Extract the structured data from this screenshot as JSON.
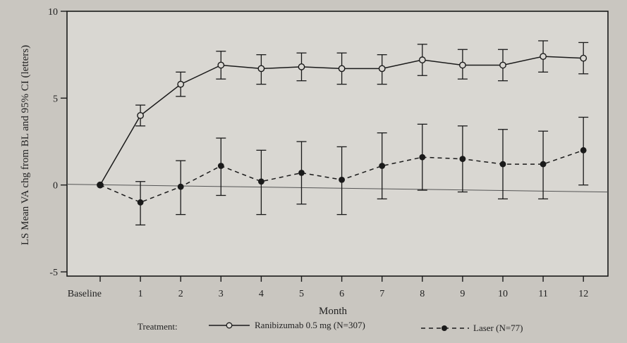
{
  "chart_data": {
    "type": "line",
    "title": "",
    "xlabel": "Month",
    "ylabel": "LS Mean VA chg from BL and 95% CI (letters)",
    "categories": [
      "Baseline",
      "1",
      "2",
      "3",
      "4",
      "5",
      "6",
      "7",
      "8",
      "9",
      "10",
      "11",
      "12"
    ],
    "ylim": [
      -5,
      10
    ],
    "yticks": [
      -5,
      0,
      5,
      10
    ],
    "grid": false,
    "legend_position": "bottom",
    "legend_title": "Treatment:",
    "series": [
      {
        "name": "Ranibizumab 0.5 mg (N=307)",
        "style": "solid",
        "marker": "open-circle",
        "values": [
          0,
          4.0,
          5.8,
          6.9,
          6.7,
          6.8,
          6.7,
          6.7,
          7.2,
          6.9,
          6.9,
          7.4,
          7.3
        ],
        "ci_low": [
          0,
          3.4,
          5.1,
          6.1,
          5.8,
          6.0,
          5.8,
          5.8,
          6.3,
          6.1,
          6.0,
          6.5,
          6.4
        ],
        "ci_high": [
          0,
          4.6,
          6.5,
          7.7,
          7.5,
          7.6,
          7.6,
          7.5,
          8.1,
          7.8,
          7.8,
          8.3,
          8.2
        ]
      },
      {
        "name": "Laser (N=77)",
        "style": "dashed",
        "marker": "filled-circle",
        "values": [
          0,
          -1.0,
          -0.1,
          1.1,
          0.2,
          0.7,
          0.3,
          1.1,
          1.6,
          1.5,
          1.2,
          1.2,
          2.0
        ],
        "ci_low": [
          0,
          -2.3,
          -1.7,
          -0.6,
          -1.7,
          -1.1,
          -1.7,
          -0.8,
          -0.3,
          -0.4,
          -0.8,
          -0.8,
          0.0
        ],
        "ci_high": [
          0,
          0.2,
          1.4,
          2.7,
          2.0,
          2.5,
          2.2,
          3.0,
          3.5,
          3.4,
          3.2,
          3.1,
          3.9
        ]
      }
    ]
  }
}
